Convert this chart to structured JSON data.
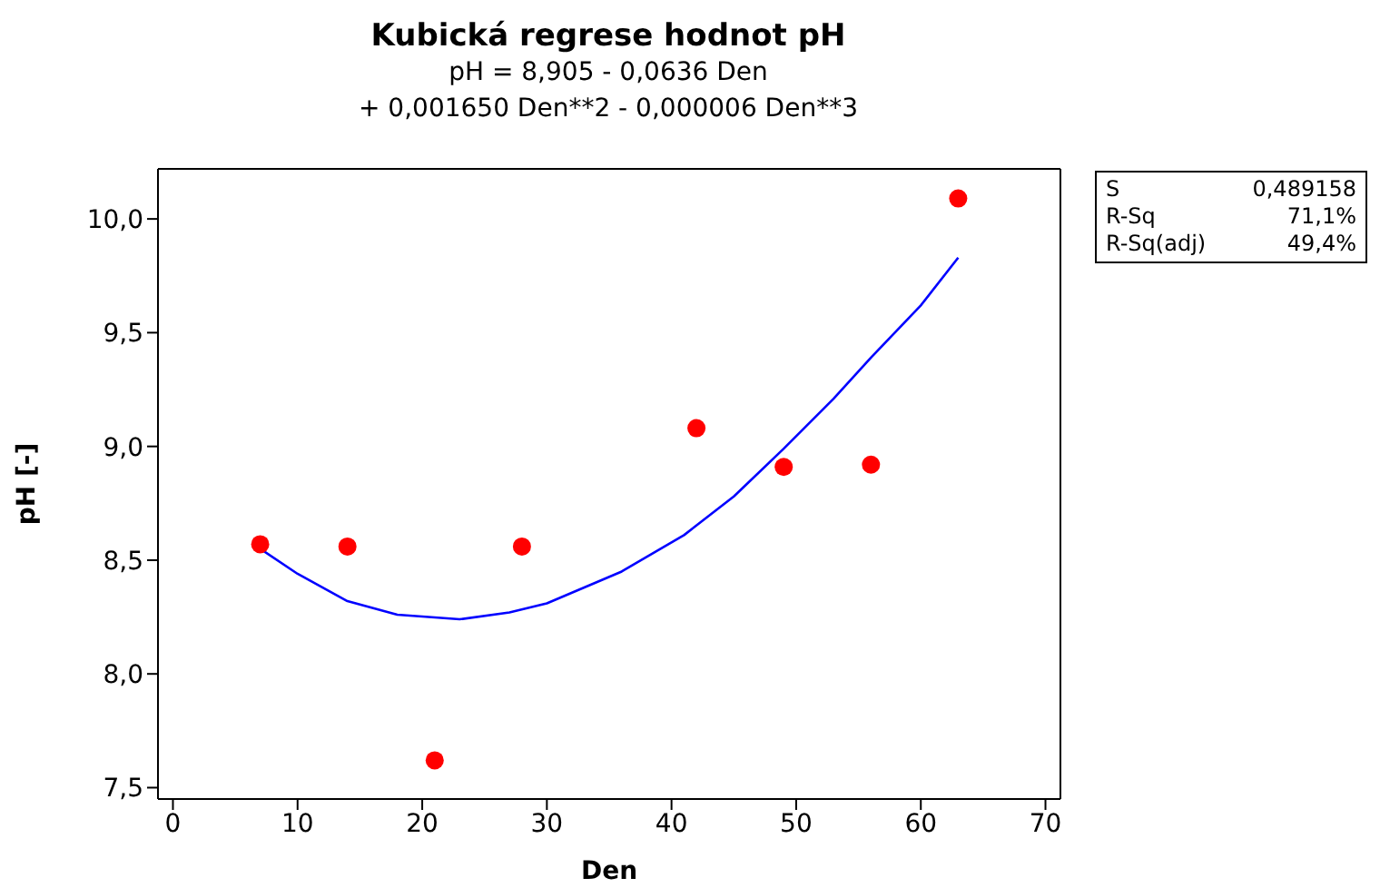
{
  "chart_data": {
    "type": "scatter",
    "title": "Kubická regrese hodnot pH",
    "subtitle": "pH =  8,905 - 0,0636 Den\n+ 0,001650 Den**2 - 0,000006 Den**3",
    "xlabel": "Den",
    "ylabel": "pH [-]",
    "x": [
      7,
      14,
      21,
      28,
      42,
      49,
      56,
      63
    ],
    "series": [
      {
        "color": "#ff0000",
        "marker": "circle",
        "values": [
          8.57,
          8.56,
          7.62,
          8.56,
          9.08,
          8.91,
          8.92,
          10.09
        ]
      },
      {
        "type": "line",
        "color": "#0000ff",
        "x": [
          7,
          10,
          14,
          18,
          23,
          27,
          30,
          36,
          41,
          45,
          49,
          53,
          56,
          60,
          63
        ],
        "values": [
          8.55,
          8.44,
          8.32,
          8.26,
          8.24,
          8.27,
          8.31,
          8.45,
          8.61,
          8.78,
          8.99,
          9.21,
          9.39,
          9.62,
          9.83
        ]
      }
    ],
    "legend": false,
    "grid": false,
    "xlim": [
      -1.2,
      71.2
    ],
    "xticks": [
      0,
      10,
      20,
      30,
      40,
      50,
      60,
      70
    ],
    "ylim": [
      7.45,
      10.22
    ],
    "yticks": [
      {
        "value": 7.5,
        "label": "7,5"
      },
      {
        "value": 8,
        "label": "8,0"
      },
      {
        "value": 8.5,
        "label": "8,5"
      },
      {
        "value": 9,
        "label": "9,0"
      },
      {
        "value": 9.5,
        "label": "9,5"
      },
      {
        "value": 10,
        "label": "10,0"
      }
    ],
    "annotations": [
      "S",
      "0,489158",
      "R-Sq",
      "71,1%",
      "R-Sq(adj)",
      "49,4%"
    ]
  }
}
